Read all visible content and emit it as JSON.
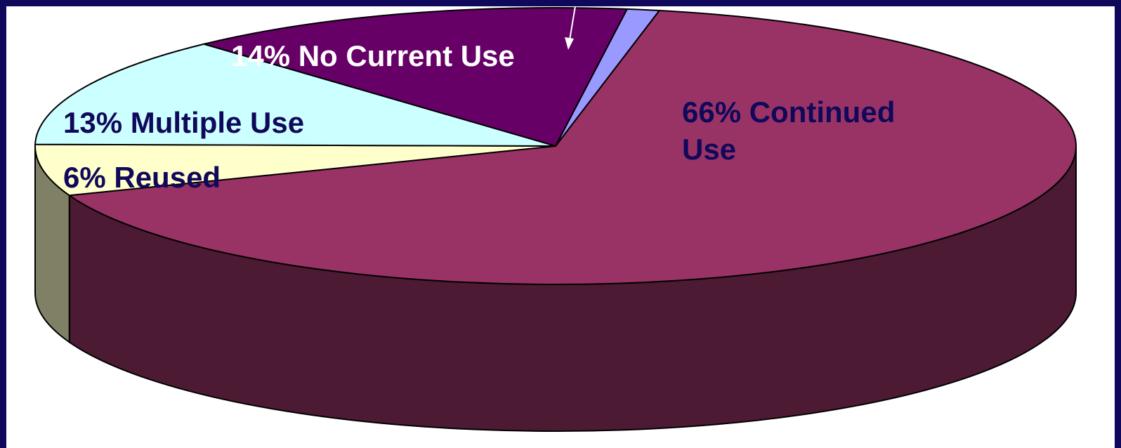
{
  "chart_data": {
    "type": "pie",
    "style": "3d",
    "categories": [
      "Continued Use",
      "Reused",
      "Multiple Use",
      "No Current Use",
      ""
    ],
    "values": [
      66,
      6,
      13,
      14,
      1
    ],
    "labels": [
      [
        "66% Continued",
        "Use"
      ],
      [
        "6% Reused"
      ],
      [
        "13% Multiple Use"
      ],
      [
        "14% No Current Use"
      ],
      []
    ],
    "colors": {
      "top": [
        "#993366",
        "#ffffcc",
        "#ccffff",
        "#660066",
        "#9999ff"
      ],
      "side": [
        "#4d1a33",
        "#808066",
        "#668080",
        "#330033",
        "#4d4d80"
      ],
      "label_text": [
        "#10085a",
        "#10085a",
        "#10085a",
        "#ffffff",
        ""
      ],
      "outline": "#000000",
      "pointer": "#ffffff"
    },
    "legend": "none"
  }
}
